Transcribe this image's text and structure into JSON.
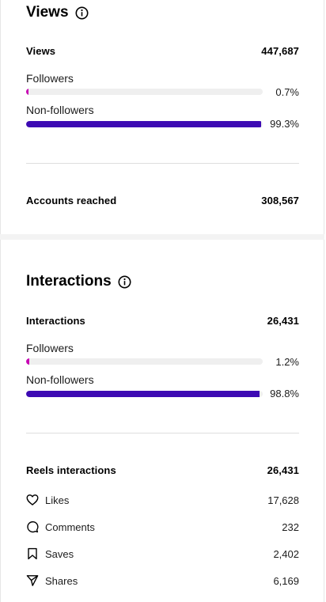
{
  "views": {
    "title": "Views",
    "total_label": "Views",
    "total_value": "447,687",
    "followers": {
      "label": "Followers",
      "pct": "0.7%",
      "fraction": 0.007,
      "color": "#c800b4"
    },
    "non_followers": {
      "label": "Non-followers",
      "pct": "99.3%",
      "fraction": 0.993,
      "color": "#3d0ab3"
    },
    "accounts_reached_label": "Accounts reached",
    "accounts_reached_value": "308,567"
  },
  "interactions": {
    "title": "Interactions",
    "total_label": "Interactions",
    "total_value": "26,431",
    "followers": {
      "label": "Followers",
      "pct": "1.2%",
      "fraction": 0.012,
      "color": "#c800b4"
    },
    "non_followers": {
      "label": "Non-followers",
      "pct": "98.8%",
      "fraction": 0.988,
      "color": "#3d0ab3"
    },
    "reels_label": "Reels interactions",
    "reels_value": "26,431",
    "metrics": [
      {
        "icon": "heart-icon",
        "label": "Likes",
        "value": "17,628"
      },
      {
        "icon": "comment-icon",
        "label": "Comments",
        "value": "232"
      },
      {
        "icon": "bookmark-icon",
        "label": "Saves",
        "value": "2,402"
      },
      {
        "icon": "send-icon",
        "label": "Shares",
        "value": "6,169"
      }
    ]
  }
}
